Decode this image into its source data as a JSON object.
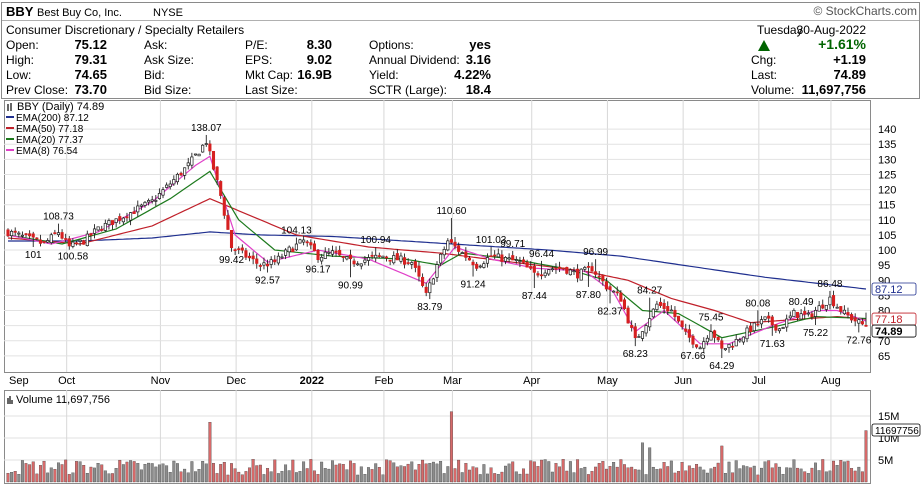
{
  "header": {
    "symbol": "BBY",
    "company": "Best Buy Co, Inc.",
    "exchange": "NYSE",
    "attribution": "© StockCharts.com",
    "sector": "Consumer Discretionary / Specialty Retailers",
    "day": "Tuesday",
    "date": "30-Aug-2022",
    "change_pct": "+1.61%",
    "up_color": "#006400",
    "quote": [
      [
        [
          "Open:",
          "75.12"
        ],
        [
          "Ask:",
          ""
        ],
        [
          "P/E:",
          "8.30"
        ],
        [
          "Options:",
          "yes"
        ]
      ],
      [
        [
          "High:",
          "79.31"
        ],
        [
          "Ask Size:",
          ""
        ],
        [
          "EPS:",
          "9.02"
        ],
        [
          "Annual Dividend:",
          "3.16"
        ]
      ],
      [
        [
          "Low:",
          "74.65"
        ],
        [
          "Bid:",
          ""
        ],
        [
          "Mkt Cap:",
          "16.9B"
        ],
        [
          "Yield:",
          "4.22%"
        ]
      ],
      [
        [
          "Prev Close:",
          "73.70"
        ],
        [
          "Bid Size:",
          ""
        ],
        [
          "Last Size:",
          ""
        ],
        [
          "SCTR (Large):",
          "18.4"
        ]
      ]
    ],
    "right_quote": [
      [
        "Chg:",
        "+1.19"
      ],
      [
        "Last:",
        "74.89"
      ],
      [
        "Volume:",
        "11,697,756"
      ]
    ]
  },
  "chart_data": [
    {
      "type": "candlestick",
      "legend": [
        {
          "label": "BBY (Daily) 74.89",
          "color": "#000000"
        },
        {
          "label": "EMA(200) 87.12",
          "color": "#1f2f8f"
        },
        {
          "label": "EMA(50) 77.18",
          "color": "#c0202a"
        },
        {
          "label": "EMA(20) 77.37",
          "color": "#1d7a1d"
        },
        {
          "label": "EMA(8) 76.54",
          "color": "#e040c8"
        }
      ],
      "y_ticks": [
        "140",
        "135",
        "130",
        "125",
        "120",
        "115",
        "110",
        "105",
        "100",
        "95",
        "90",
        "85",
        "80",
        "75",
        "70",
        "65"
      ],
      "ylim": [
        60,
        145
      ],
      "x_labels": [
        "Sep",
        "Oct",
        "Nov",
        "Dec",
        "2022",
        "Feb",
        "Mar",
        "Apr",
        "May",
        "Jun",
        "Jul",
        "Aug"
      ],
      "price_labels": [
        {
          "d": 7,
          "v": 101,
          "t": "101"
        },
        {
          "d": 14,
          "v": 108.73,
          "t": "108.73"
        },
        {
          "d": 18,
          "v": 100.58,
          "t": "100.58"
        },
        {
          "d": 55,
          "v": 138.07,
          "t": "138.07"
        },
        {
          "d": 62,
          "v": 99.42,
          "t": "99.42"
        },
        {
          "d": 72,
          "v": 92.57,
          "t": "92.57"
        },
        {
          "d": 80,
          "v": 104.13,
          "t": "104.13"
        },
        {
          "d": 86,
          "v": 96.17,
          "t": "96.17"
        },
        {
          "d": 95,
          "v": 90.99,
          "t": "90.99"
        },
        {
          "d": 102,
          "v": 100.94,
          "t": "100.94"
        },
        {
          "d": 117,
          "v": 83.79,
          "t": "83.79"
        },
        {
          "d": 123,
          "v": 110.6,
          "t": "110.60"
        },
        {
          "d": 129,
          "v": 91.24,
          "t": "91.24"
        },
        {
          "d": 134,
          "v": 101.03,
          "t": "101.03"
        },
        {
          "d": 140,
          "v": 99.71,
          "t": "99.71"
        },
        {
          "d": 146,
          "v": 87.44,
          "t": "87.44"
        },
        {
          "d": 148,
          "v": 96.44,
          "t": "96.44"
        },
        {
          "d": 161,
          "v": 87.8,
          "t": "87.80"
        },
        {
          "d": 163,
          "v": 96.99,
          "t": "96.99"
        },
        {
          "d": 167,
          "v": 82.37,
          "t": "82.37"
        },
        {
          "d": 174,
          "v": 68.23,
          "t": "68.23"
        },
        {
          "d": 178,
          "v": 84.27,
          "t": "84.27"
        },
        {
          "d": 190,
          "v": 67.66,
          "t": "67.66"
        },
        {
          "d": 195,
          "v": 75.45,
          "t": "75.45"
        },
        {
          "d": 198,
          "v": 64.29,
          "t": "64.29"
        },
        {
          "d": 208,
          "v": 80.08,
          "t": "80.08"
        },
        {
          "d": 212,
          "v": 71.63,
          "t": "71.63"
        },
        {
          "d": 220,
          "v": 80.49,
          "t": "80.49"
        },
        {
          "d": 224,
          "v": 75.22,
          "t": "75.22"
        },
        {
          "d": 228,
          "v": 86.48,
          "t": "86.48"
        },
        {
          "d": 236,
          "v": 72.76,
          "t": "72.76"
        }
      ],
      "ema_right_labels": [
        {
          "v": 87.12,
          "t": "87.12",
          "color": "#1f2f8f"
        },
        {
          "v": 77.18,
          "t": "77.18",
          "color": "#c0202a"
        },
        {
          "v": 74.89,
          "t": "74.89",
          "color": "#000000"
        }
      ],
      "close_anchors": [
        [
          0,
          106
        ],
        [
          5,
          104
        ],
        [
          10,
          102
        ],
        [
          14,
          106
        ],
        [
          17,
          101
        ],
        [
          21,
          103
        ],
        [
          25,
          107
        ],
        [
          30,
          110
        ],
        [
          35,
          113
        ],
        [
          40,
          116
        ],
        [
          45,
          122
        ],
        [
          50,
          128
        ],
        [
          55,
          136
        ],
        [
          59,
          118
        ],
        [
          62,
          101
        ],
        [
          66,
          98
        ],
        [
          70,
          95
        ],
        [
          74,
          96
        ],
        [
          78,
          100
        ],
        [
          82,
          103
        ],
        [
          86,
          98
        ],
        [
          90,
          99
        ],
        [
          95,
          96
        ],
        [
          100,
          97
        ],
        [
          104,
          98
        ],
        [
          108,
          97
        ],
        [
          112,
          96
        ],
        [
          116,
          85
        ],
        [
          119,
          95
        ],
        [
          122,
          103
        ],
        [
          126,
          99
        ],
        [
          130,
          95
        ],
        [
          134,
          98
        ],
        [
          138,
          97
        ],
        [
          142,
          96
        ],
        [
          146,
          92
        ],
        [
          150,
          94
        ],
        [
          154,
          94
        ],
        [
          158,
          92
        ],
        [
          162,
          94
        ],
        [
          166,
          88
        ],
        [
          170,
          84
        ],
        [
          174,
          70
        ],
        [
          177,
          76
        ],
        [
          180,
          82
        ],
        [
          184,
          80
        ],
        [
          188,
          72
        ],
        [
          192,
          68
        ],
        [
          195,
          74
        ],
        [
          198,
          67
        ],
        [
          202,
          70
        ],
        [
          206,
          74
        ],
        [
          210,
          77
        ],
        [
          214,
          74
        ],
        [
          218,
          79
        ],
        [
          222,
          78
        ],
        [
          226,
          82
        ],
        [
          228,
          84
        ],
        [
          232,
          79
        ],
        [
          236,
          76
        ],
        [
          238,
          74.89
        ]
      ],
      "ema_anchors": {
        "ema200": [
          [
            0,
            103
          ],
          [
            20,
            103
          ],
          [
            40,
            104
          ],
          [
            56,
            106
          ],
          [
            70,
            105
          ],
          [
            90,
            104.5
          ],
          [
            110,
            103
          ],
          [
            130,
            101.5
          ],
          [
            150,
            100
          ],
          [
            170,
            98
          ],
          [
            190,
            94.5
          ],
          [
            210,
            91
          ],
          [
            226,
            88.8
          ],
          [
            238,
            87.12
          ]
        ],
        "ema50": [
          [
            0,
            104
          ],
          [
            20,
            102
          ],
          [
            40,
            108
          ],
          [
            56,
            117
          ],
          [
            66,
            112
          ],
          [
            80,
            105
          ],
          [
            100,
            101
          ],
          [
            120,
            99
          ],
          [
            140,
            96
          ],
          [
            160,
            93
          ],
          [
            172,
            90
          ],
          [
            184,
            84
          ],
          [
            196,
            80
          ],
          [
            206,
            76
          ],
          [
            218,
            77
          ],
          [
            230,
            78
          ],
          [
            238,
            77.18
          ]
        ],
        "ema20": [
          [
            0,
            105
          ],
          [
            15,
            102
          ],
          [
            30,
            107
          ],
          [
            45,
            117
          ],
          [
            56,
            126
          ],
          [
            64,
            110
          ],
          [
            74,
            100
          ],
          [
            90,
            98
          ],
          [
            110,
            97
          ],
          [
            120,
            95
          ],
          [
            126,
            99
          ],
          [
            140,
            97
          ],
          [
            154,
            94
          ],
          [
            166,
            90
          ],
          [
            176,
            80
          ],
          [
            186,
            79
          ],
          [
            198,
            71
          ],
          [
            206,
            73
          ],
          [
            214,
            75
          ],
          [
            224,
            78
          ],
          [
            238,
            77.37
          ]
        ],
        "ema8": [
          [
            0,
            105
          ],
          [
            12,
            102
          ],
          [
            25,
            106
          ],
          [
            40,
            116
          ],
          [
            52,
            128
          ],
          [
            56,
            131
          ],
          [
            63,
            105
          ],
          [
            72,
            96
          ],
          [
            86,
            100
          ],
          [
            100,
            97
          ],
          [
            116,
            89
          ],
          [
            124,
            101
          ],
          [
            134,
            97
          ],
          [
            146,
            94
          ],
          [
            160,
            93
          ],
          [
            168,
            86
          ],
          [
            174,
            73
          ],
          [
            182,
            80
          ],
          [
            192,
            69
          ],
          [
            200,
            69
          ],
          [
            212,
            75
          ],
          [
            224,
            80
          ],
          [
            230,
            80
          ],
          [
            238,
            76.54
          ]
        ]
      }
    },
    {
      "type": "bar",
      "legend": "Volume 11,697,756",
      "y_ticks": [
        "15M",
        "10M",
        "5M"
      ],
      "ylim": [
        0,
        20
      ],
      "last_value_label": "11697756",
      "spike_days": [
        [
          56,
          13.6
        ],
        [
          123,
          16.0
        ],
        [
          176,
          8.9
        ],
        [
          178,
          7.8
        ],
        [
          198,
          8.2
        ],
        [
          210,
          4.6
        ],
        [
          238,
          11.7
        ]
      ]
    }
  ]
}
